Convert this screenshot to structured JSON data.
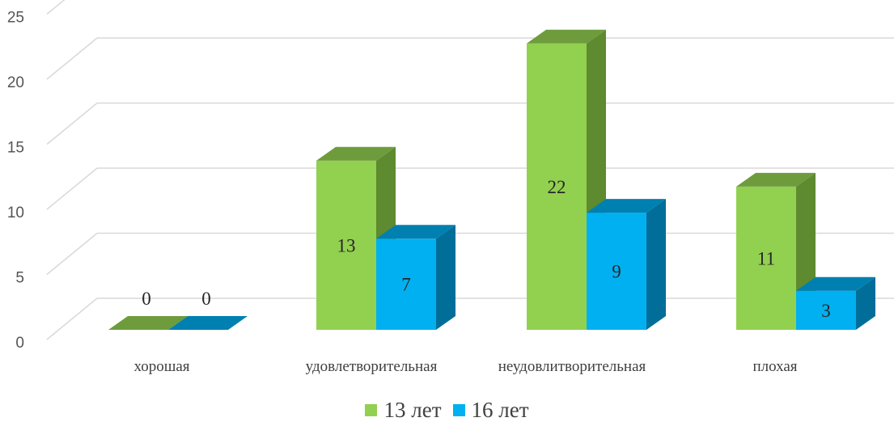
{
  "chart_data": {
    "type": "bar",
    "title": "",
    "categories": [
      "хорошая",
      "удовлетворительная",
      "неудовлитворительная",
      "плохая"
    ],
    "series": [
      {
        "name": "13 лет",
        "values": [
          0,
          13,
          22,
          11
        ],
        "color": "#92D050",
        "side_color": "#5E8A30",
        "top_color": "#6E9C3C"
      },
      {
        "name": "16 лет",
        "values": [
          0,
          7,
          9,
          3
        ],
        "color": "#00B0F0",
        "side_color": "#006E99",
        "top_color": "#0080B0"
      }
    ],
    "y_ticks": [
      "0",
      "5",
      "10",
      "15",
      "20",
      "25"
    ],
    "ylim": [
      0,
      25
    ],
    "grid": true,
    "legend": "bottom",
    "style": "3d-clustered-column"
  }
}
